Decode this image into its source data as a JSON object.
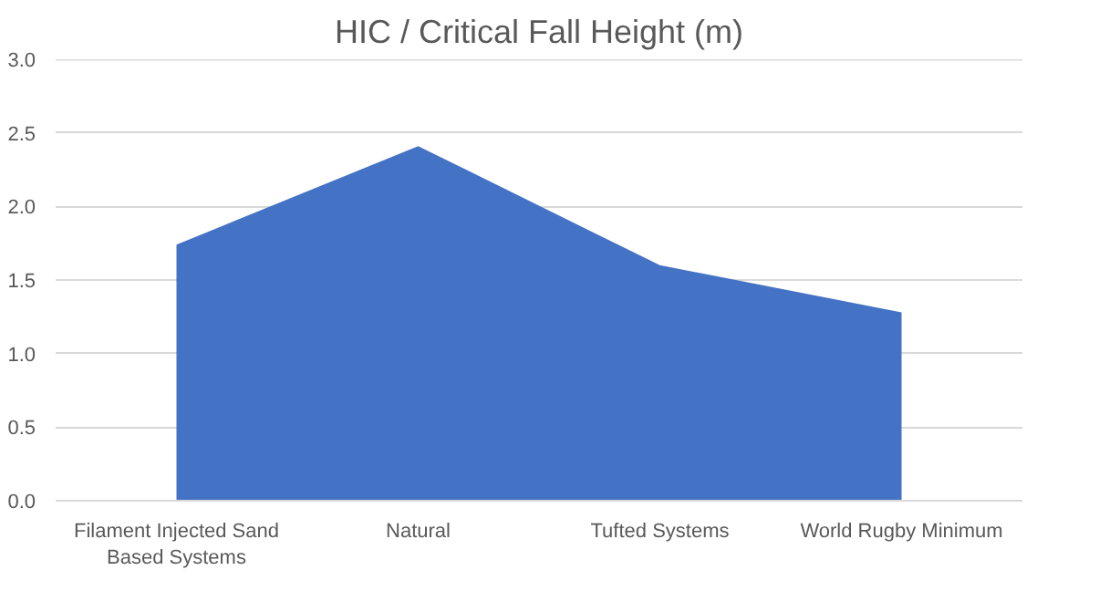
{
  "chart_data": {
    "type": "area",
    "title": "HIC / Critical Fall Height (m)",
    "categories": [
      "Filament Injected Sand Based Systems",
      "Natural",
      "Tufted Systems",
      "World Rugby Minimum"
    ],
    "values": [
      1.74,
      2.41,
      1.6,
      1.28
    ],
    "color": "#4472c4",
    "ylim": [
      0,
      3
    ],
    "yticks": [
      {
        "value": 0,
        "label": "0.0"
      },
      {
        "value": 0.5,
        "label": "0.5"
      },
      {
        "value": 1,
        "label": "1.0"
      },
      {
        "value": 1.5,
        "label": "1.5"
      },
      {
        "value": 2,
        "label": "2.0"
      },
      {
        "value": 2.5,
        "label": "2.5"
      },
      {
        "value": 3,
        "label": "3.0"
      }
    ],
    "grid": "y"
  }
}
